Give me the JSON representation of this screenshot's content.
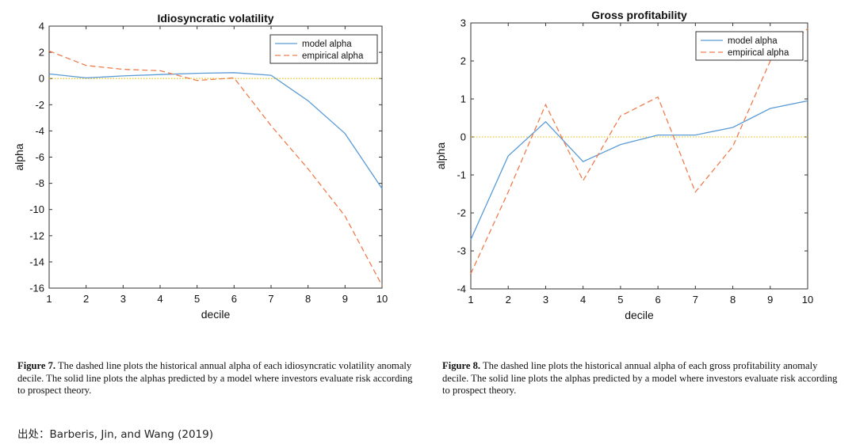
{
  "chart_data": [
    {
      "type": "line",
      "title": "Idiosyncratic volatility",
      "xlabel": "decile",
      "ylabel": "alpha",
      "xlim": [
        1,
        10
      ],
      "ylim": [
        -16,
        4
      ],
      "xticks": [
        1,
        2,
        3,
        4,
        5,
        6,
        7,
        8,
        9,
        10
      ],
      "yticks": [
        4,
        2,
        0,
        -2,
        -4,
        -6,
        -8,
        -10,
        -12,
        -14,
        -16
      ],
      "x": [
        1,
        2,
        3,
        4,
        5,
        6,
        7,
        8,
        9,
        10
      ],
      "series": [
        {
          "name": "model alpha",
          "style": "solid",
          "color": "#5b9bd5",
          "values": [
            0.35,
            0.05,
            0.2,
            0.3,
            0.4,
            0.45,
            0.25,
            -1.7,
            -4.2,
            -8.4
          ]
        },
        {
          "name": "empirical alpha",
          "style": "dashed",
          "color": "#ed7d4f",
          "values": [
            2.1,
            1.0,
            0.7,
            0.6,
            -0.15,
            0.05,
            -3.6,
            -6.9,
            -10.5,
            -15.8
          ]
        }
      ],
      "reference_line": {
        "y": 0,
        "style": "dotted",
        "color": "#e6b800"
      },
      "legend_position": "top-right",
      "grid": false
    },
    {
      "type": "line",
      "title": "Gross profitability",
      "xlabel": "decile",
      "ylabel": "alpha",
      "xlim": [
        1,
        10
      ],
      "ylim": [
        -4,
        3
      ],
      "xticks": [
        1,
        2,
        3,
        4,
        5,
        6,
        7,
        8,
        9,
        10
      ],
      "yticks": [
        3,
        2,
        1,
        0,
        -1,
        -2,
        -3,
        -4
      ],
      "x": [
        1,
        2,
        3,
        4,
        5,
        6,
        7,
        8,
        9,
        10
      ],
      "series": [
        {
          "name": "model alpha",
          "style": "solid",
          "color": "#5b9bd5",
          "values": [
            -2.7,
            -0.5,
            0.4,
            -0.65,
            -0.2,
            0.05,
            0.05,
            0.25,
            0.75,
            0.95
          ]
        },
        {
          "name": "empirical alpha",
          "style": "dashed",
          "color": "#ed7d4f",
          "values": [
            -3.6,
            -1.45,
            0.85,
            -1.15,
            0.55,
            1.05,
            -1.45,
            -0.25,
            2.0,
            2.85
          ]
        }
      ],
      "reference_line": {
        "y": 0,
        "style": "dotted",
        "color": "#e6b800"
      },
      "legend_position": "top-right",
      "grid": false
    }
  ],
  "captions": {
    "left": {
      "label": "Figure 7.",
      "text": "The dashed line plots the historical annual alpha of each idiosyncratic volatility anomaly decile. The solid line plots the alphas predicted by a model where investors evaluate risk according to prospect theory."
    },
    "right": {
      "label": "Figure 8.",
      "text": "The dashed line plots the historical annual alpha of each gross profitability anomaly decile. The solid line plots the alphas predicted by a model where investors evaluate risk according to prospect theory."
    }
  },
  "source_note": "出处：Barberis, Jin, and Wang (2019)"
}
